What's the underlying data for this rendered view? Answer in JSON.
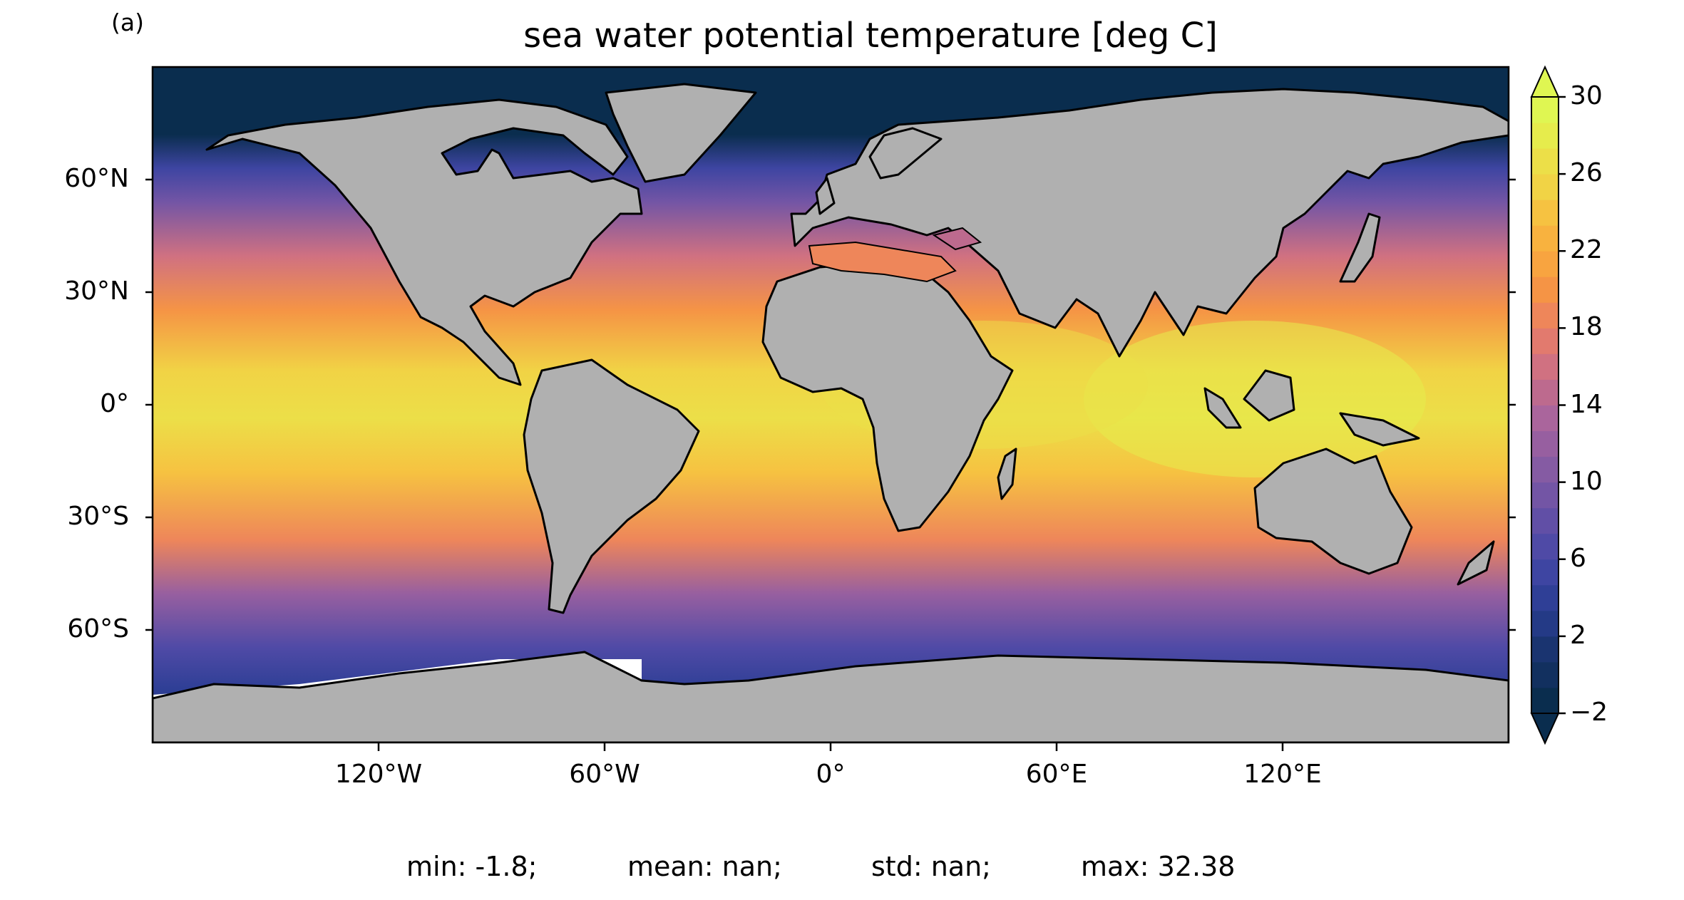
{
  "panel_label": "(a)",
  "title": "sea water potential temperature [deg C]",
  "lat_ticks": [
    "60°N",
    "30°N",
    "0°",
    "30°S",
    "60°S"
  ],
  "lon_ticks": [
    "120°W",
    "60°W",
    "0°",
    "60°E",
    "120°E"
  ],
  "colorbar": {
    "ticks": [
      "30",
      "26",
      "22",
      "18",
      "14",
      "10",
      "6",
      "2",
      "−2"
    ],
    "min": -2,
    "max": 30,
    "extend": "both",
    "colors": [
      "#0a2d4e",
      "#12305f",
      "#1a3470",
      "#243a86",
      "#2f3f96",
      "#3e45a2",
      "#4f4aa6",
      "#614fa6",
      "#7355a5",
      "#855ba3",
      "#975fa0",
      "#aa659c",
      "#bd6a8e",
      "#d07181",
      "#e27a6e",
      "#ee865a",
      "#f59445",
      "#f8a440",
      "#f8b23f",
      "#f6c241",
      "#f1d345",
      "#ecdf48",
      "#e6ec4c",
      "#dff652"
    ]
  },
  "stats": {
    "min": "min: -1.8;",
    "mean": "mean: nan;",
    "std": "std: nan;",
    "max": "max: 32.38"
  },
  "colors": {
    "land": "#b0b0b0",
    "missing": "#ffffff",
    "coast": "#000000"
  }
}
